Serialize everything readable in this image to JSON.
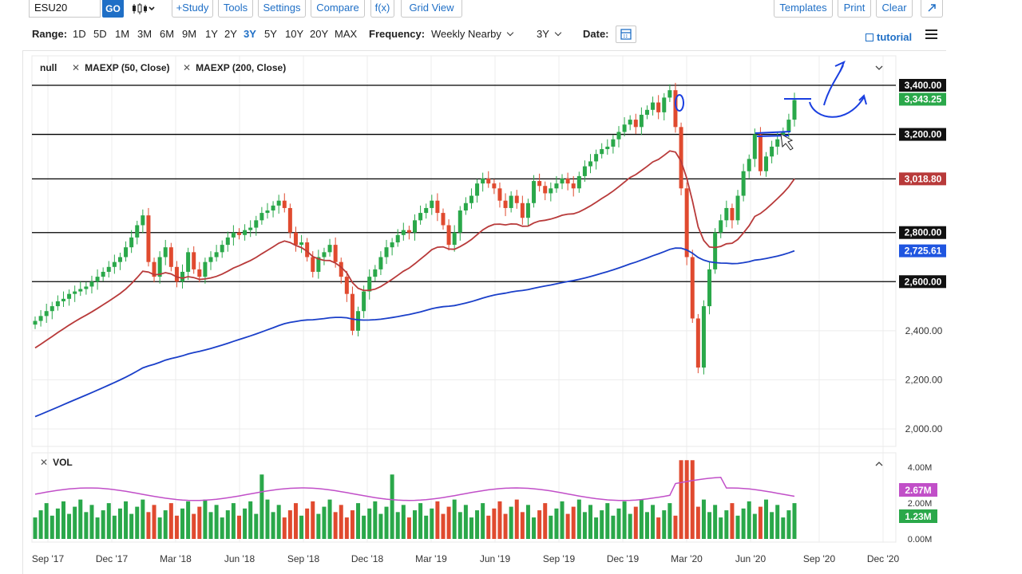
{
  "toolbar": {
    "symbol": "ESU20",
    "go_label": "GO",
    "buttons": {
      "study": "+Study",
      "tools": "Tools",
      "settings": "Settings",
      "compare": "Compare",
      "fx": "f(x)",
      "grid_view": "Grid View",
      "templates": "Templates",
      "print": "Print",
      "clear": "Clear"
    }
  },
  "range_bar": {
    "range_label": "Range:",
    "ranges": [
      "1D",
      "5D",
      "1M",
      "3M",
      "6M",
      "9M",
      "1Y",
      "2Y",
      "3Y",
      "5Y",
      "10Y",
      "20Y",
      "MAX"
    ],
    "active_range": "3Y",
    "frequency_label": "Frequency:",
    "frequency_value": "Weekly Nearby",
    "period_value": "3Y",
    "date_label": "Date:",
    "tutorial_label": "tutorial"
  },
  "legend": {
    "main": "null",
    "ma1": "MAEXP (50, Close)",
    "ma2": "MAEXP (200, Close)",
    "vol": "VOL"
  },
  "colors": {
    "up": "#2aa84a",
    "down": "#e04a2f",
    "ma50": "#b83a3a",
    "ma200": "#1a3fc9",
    "vol_avg": "#c14fc8",
    "annotation": "#1a3fe0",
    "accent": "#1f6fc6"
  },
  "chart_data": {
    "type": "candlestick",
    "y_axis_ticks": [
      "3,400.00",
      "3,200.00",
      "2,800.00",
      "2,600.00",
      "2,400.00",
      "2,200.00",
      "2,000.00"
    ],
    "ylim": [
      1950,
      3480
    ],
    "x_axis_labels": [
      "Sep '17",
      "Dec '17",
      "Mar '18",
      "Jun '18",
      "Sep '18",
      "Dec '18",
      "Mar '19",
      "Jun '19",
      "Sep '19",
      "Dec '19",
      "Mar '20",
      "Jun '20",
      "Sep '20",
      "Dec '20"
    ],
    "horizontal_levels": [
      3400,
      3200,
      3018.8,
      2800,
      2600
    ],
    "last_price_label": "3,343.25",
    "ma50_label": "3,018.80",
    "ma200_label": "2,725.61",
    "price_tags": [
      "3,400.00",
      "3,200.00",
      "2,800.00",
      "2,600.00"
    ],
    "closes": [
      2440,
      2460,
      2480,
      2500,
      2520,
      2530,
      2550,
      2560,
      2570,
      2580,
      2600,
      2620,
      2640,
      2660,
      2680,
      2700,
      2740,
      2780,
      2830,
      2870,
      2680,
      2620,
      2700,
      2740,
      2660,
      2600,
      2640,
      2720,
      2650,
      2620,
      2680,
      2700,
      2720,
      2750,
      2780,
      2800,
      2790,
      2810,
      2820,
      2850,
      2880,
      2890,
      2910,
      2930,
      2900,
      2800,
      2750,
      2760,
      2700,
      2640,
      2700,
      2720,
      2750,
      2680,
      2620,
      2550,
      2400,
      2480,
      2560,
      2620,
      2650,
      2700,
      2740,
      2760,
      2790,
      2810,
      2800,
      2850,
      2880,
      2900,
      2930,
      2880,
      2830,
      2750,
      2800,
      2890,
      2920,
      2950,
      3000,
      3020,
      3000,
      2980,
      2930,
      2900,
      2950,
      2920,
      2860,
      2920,
      3010,
      2990,
      2960,
      2980,
      3000,
      3020,
      3000,
      2980,
      3030,
      3070,
      3090,
      3120,
      3140,
      3150,
      3180,
      3210,
      3240,
      3260,
      3230,
      3280,
      3300,
      3330,
      3290,
      3350,
      3380,
      3230,
      2980,
      2700,
      2450,
      2250,
      2500,
      2650,
      2800,
      2850,
      2900,
      2850,
      2950,
      3050,
      3100,
      3200,
      3050,
      3110,
      3150,
      3180,
      3210,
      3260,
      3340
    ],
    "ma50_values": [
      2330,
      3018.8
    ],
    "ma200_values": [
      2050,
      2725.61
    ],
    "volume": {
      "ylim": [
        0,
        4.5
      ],
      "y_axis_ticks": [
        "4.00M",
        "2.00M",
        "0.00M"
      ],
      "avg_label": "2.67M",
      "last_label": "1.23M"
    }
  }
}
